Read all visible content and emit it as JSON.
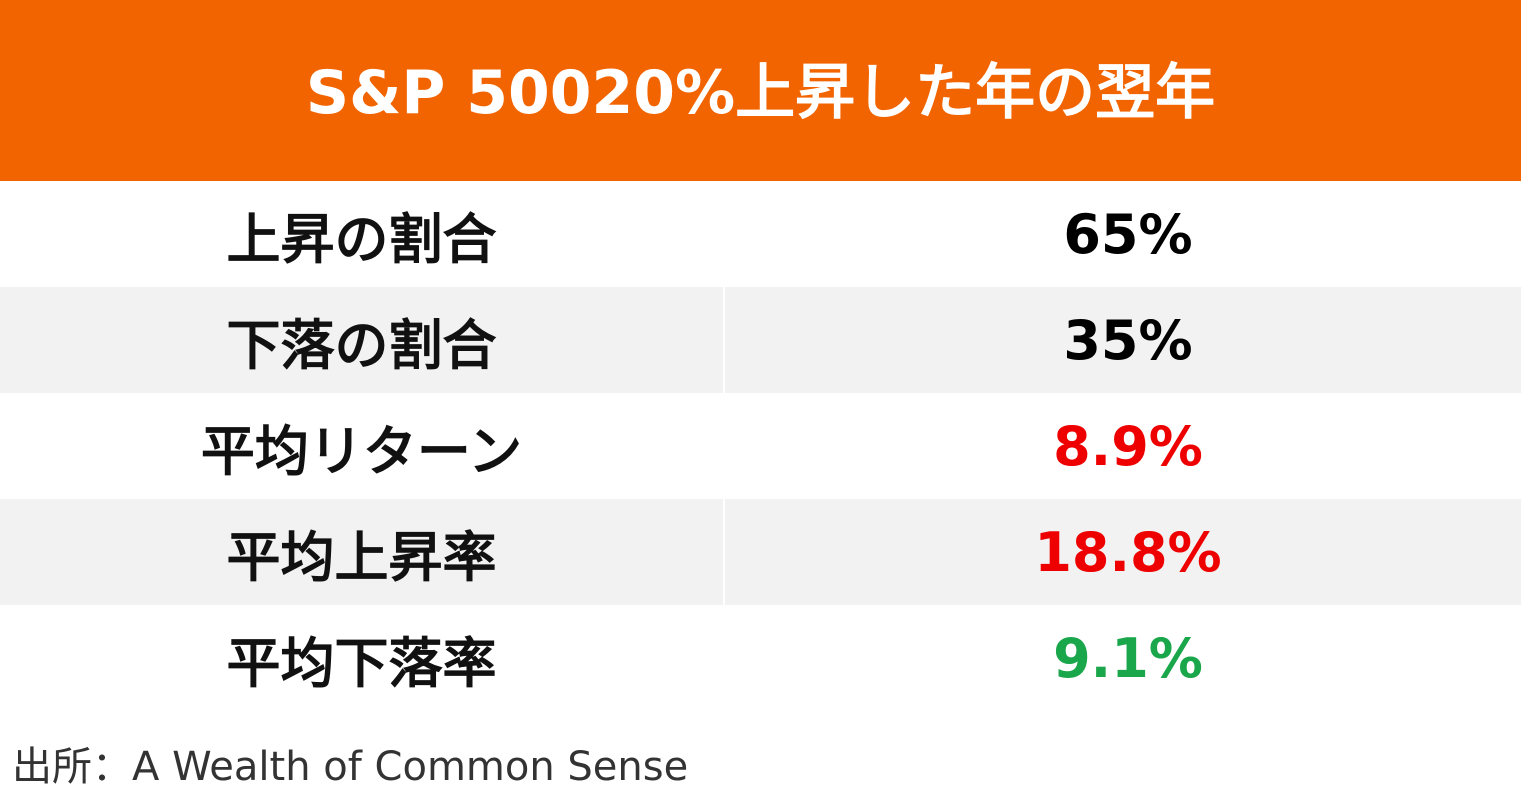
{
  "chart_data": {
    "type": "table",
    "title": "S&P 50020%上昇した年の翌年",
    "rows": [
      {
        "label": "上昇の割合",
        "value": "65%",
        "color": "#000000"
      },
      {
        "label": "下落の割合",
        "value": "35%",
        "color": "#000000"
      },
      {
        "label": "平均リターン",
        "value": "8.9%",
        "color": "#ee0000"
      },
      {
        "label": "平均上昇率",
        "value": "18.8%",
        "color": "#ee0000"
      },
      {
        "label": "平均下落率",
        "value": "9.1%",
        "color": "#1aa64a"
      }
    ],
    "source": "出所：A Wealth of Common Sense"
  },
  "colors": {
    "header_background": "#f26400",
    "header_text": "#ffffff",
    "row_shade": "#f2f2f2"
  }
}
